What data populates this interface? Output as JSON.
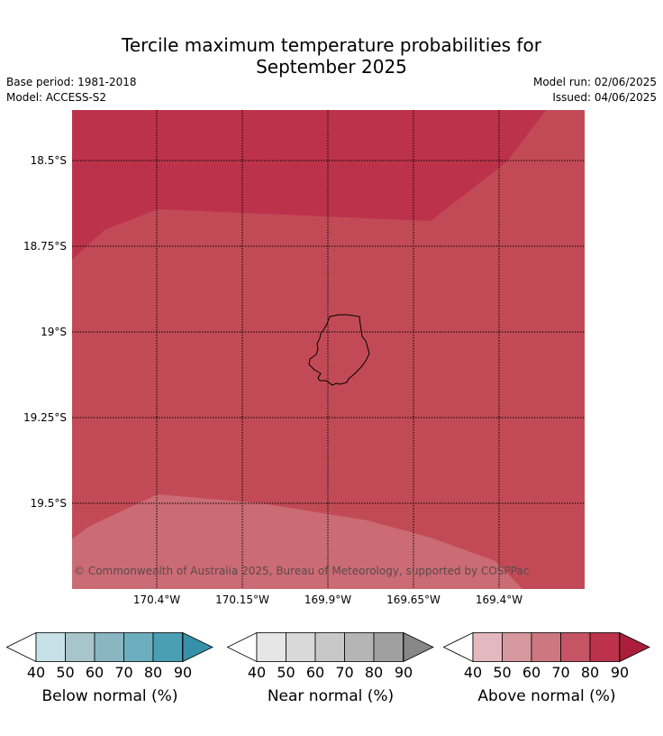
{
  "title": {
    "line1": "Tercile maximum temperature probabilities for",
    "line2": "September 2025"
  },
  "meta": {
    "base_period": "Base period: 1981-2018",
    "model": "Model: ACCESS-S2",
    "model_run": "Model run: 02/06/2025",
    "issued": "Issued: 04/06/2025"
  },
  "map": {
    "latitude_labels": [
      "18.5°S",
      "18.75°S",
      "19°S",
      "19.25°S",
      "19.5°S"
    ],
    "longitude_labels": [
      "170.4°W",
      "170.15°W",
      "169.9°W",
      "169.65°W",
      "169.4°W"
    ],
    "copyright": "© Commonwealth of Australia 2025, Bureau of Meteorology, supported by COSPPac",
    "colors": {
      "band_80_90": "#bc324b",
      "band_70_80": "#c24a57",
      "band_60_70": "#cb6b74",
      "coastline": "#000000",
      "gridline": "#000000"
    }
  },
  "colorbars": [
    {
      "label": "Below normal (%)",
      "ticks": [
        "40",
        "50",
        "60",
        "70",
        "80",
        "90"
      ],
      "colors": [
        "#c8e1e8",
        "#a7c5cb",
        "#8ab6c2",
        "#6daebe",
        "#4b9fb4",
        "#3591a8"
      ]
    },
    {
      "label": "Near normal (%)",
      "ticks": [
        "40",
        "50",
        "60",
        "70",
        "80",
        "90"
      ],
      "colors": [
        "#e6e6e6",
        "#d9d9d9",
        "#c8c8c8",
        "#b5b5b5",
        "#a0a0a0",
        "#878787"
      ]
    },
    {
      "label": "Above normal (%)",
      "ticks": [
        "40",
        "50",
        "60",
        "70",
        "80",
        "90"
      ],
      "colors": [
        "#e3b9bf",
        "#d7979f",
        "#cd7880",
        "#c55565",
        "#bc324b",
        "#aa1d3b"
      ]
    }
  ]
}
